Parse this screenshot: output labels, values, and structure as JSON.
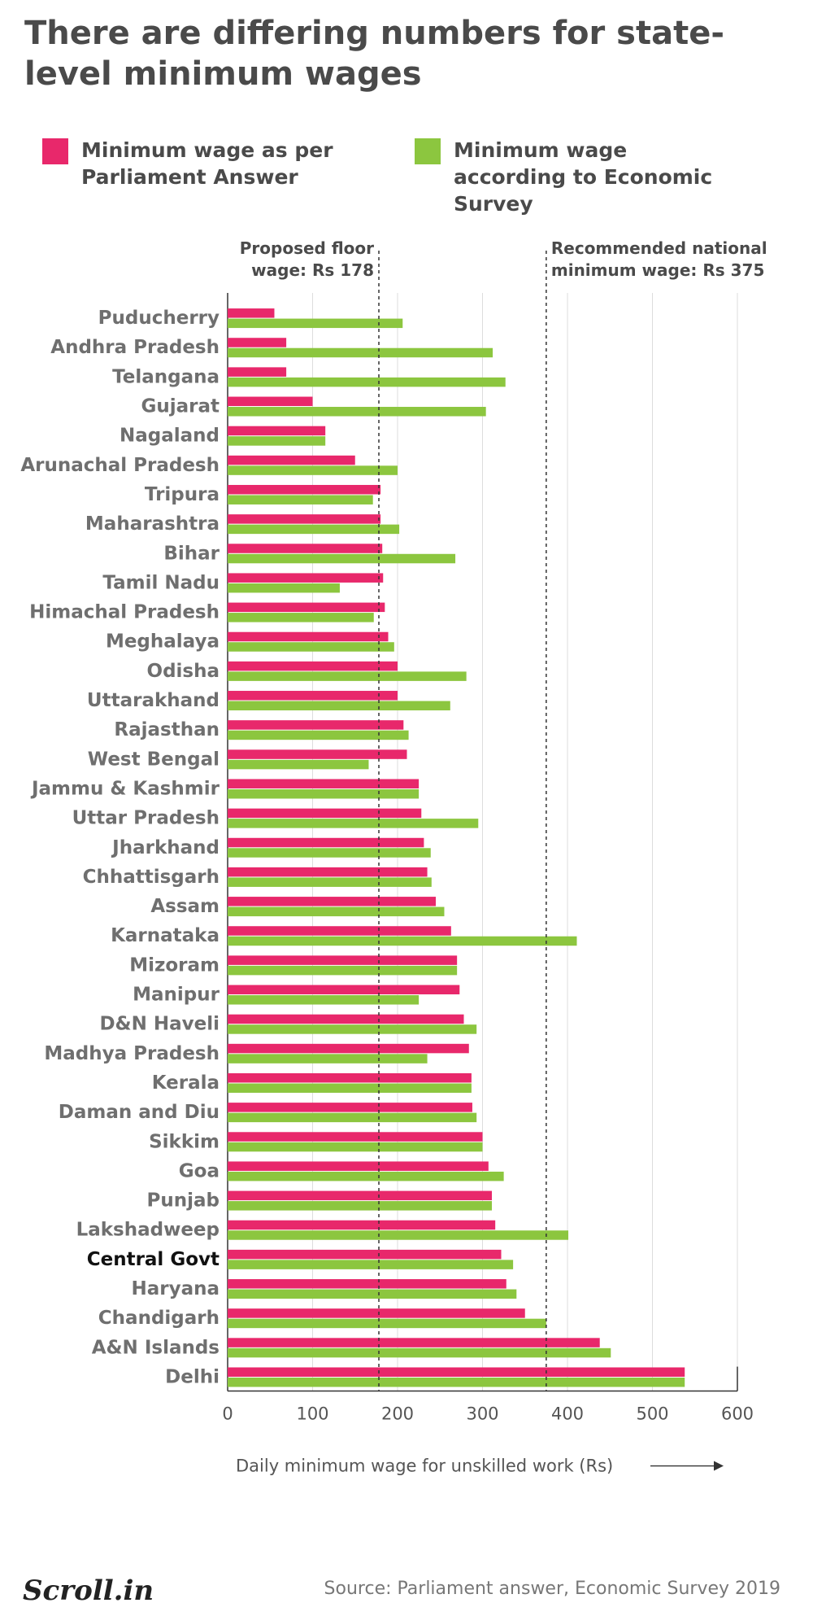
{
  "header": {
    "title": "There are differing numbers for state-level minimum wages"
  },
  "footer": {
    "logo": "Scroll.in",
    "source": "Source:  Parliament answer, Economic Survey 2019"
  },
  "colors": {
    "parliament": "#e8286b",
    "survey": "#8cc63f"
  },
  "chart_data": {
    "type": "bar",
    "orientation": "horizontal",
    "title": "There are differing numbers for state-level minimum wages",
    "xlabel": "Daily minimum wage for unskilled work (Rs)",
    "xlim": [
      0,
      600
    ],
    "xticks": [
      0,
      100,
      200,
      300,
      400,
      500,
      600
    ],
    "grid": true,
    "legend_position": "top",
    "highlight_category": "Central Govt",
    "categories": [
      "Puducherry",
      "Andhra Pradesh",
      "Telangana",
      "Gujarat",
      "Nagaland",
      "Arunachal Pradesh",
      "Tripura",
      "Maharashtra",
      "Bihar",
      "Tamil Nadu",
      "Himachal Pradesh",
      "Meghalaya",
      "Odisha",
      "Uttarakhand",
      "Rajasthan",
      "West Bengal",
      "Jammu & Kashmir",
      "Uttar Pradesh",
      "Jharkhand",
      "Chhattisgarh",
      "Assam",
      "Karnataka",
      "Mizoram",
      "Manipur",
      "D&N Haveli",
      "Madhya Pradesh",
      "Kerala",
      "Daman and Diu",
      "Sikkim",
      "Goa",
      "Punjab",
      "Lakshadweep",
      "Central Govt",
      "Haryana",
      "Chandigarh",
      "A&N Islands",
      "Delhi"
    ],
    "series": [
      {
        "name": "Minimum wage as per Parliament Answer",
        "color": "#e8286b",
        "values": [
          55,
          69,
          69,
          100,
          115,
          150,
          180,
          180,
          182,
          183,
          185,
          189,
          200,
          200,
          207,
          211,
          225,
          228,
          231,
          235,
          245,
          263,
          270,
          273,
          278,
          284,
          287,
          288,
          300,
          307,
          311,
          315,
          322,
          328,
          350,
          438,
          538
        ]
      },
      {
        "name": "Minimum wage according to Economic Survey",
        "color": "#8cc63f",
        "values": [
          206,
          312,
          327,
          304,
          115,
          200,
          171,
          202,
          268,
          132,
          172,
          196,
          281,
          262,
          213,
          166,
          225,
          295,
          239,
          240,
          255,
          411,
          270,
          225,
          293,
          235,
          287,
          293,
          300,
          325,
          311,
          401,
          336,
          340,
          375,
          451,
          538
        ]
      }
    ],
    "reference_lines": [
      {
        "value": 178,
        "label_lines": [
          "Proposed floor",
          "wage: Rs 178"
        ]
      },
      {
        "value": 375,
        "label_lines": [
          "Recommended national",
          "minimum wage: Rs 375"
        ]
      }
    ]
  }
}
